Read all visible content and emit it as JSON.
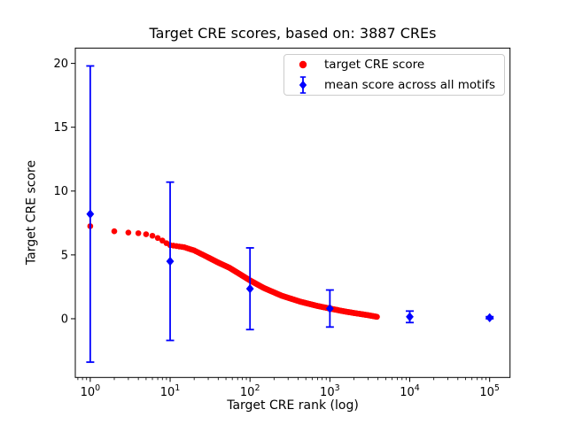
{
  "window": {
    "background": "#ffffff"
  },
  "chart_data": {
    "type": "scatter",
    "title": "Target CRE scores, based on: 3887 CREs",
    "xlabel": "Target CRE rank (log)",
    "ylabel": "Target CRE score",
    "xscale": "log",
    "xlim": [
      0.65,
      180000
    ],
    "ylim": [
      -4.6,
      21.2
    ],
    "xticks": [
      1,
      10,
      100,
      1000,
      10000,
      100000
    ],
    "xtick_labels": [
      {
        "base": "10",
        "exp": "0"
      },
      {
        "base": "10",
        "exp": "1"
      },
      {
        "base": "10",
        "exp": "2"
      },
      {
        "base": "10",
        "exp": "3"
      },
      {
        "base": "10",
        "exp": "4"
      },
      {
        "base": "10",
        "exp": "5"
      }
    ],
    "yticks": [
      0,
      5,
      10,
      15,
      20
    ],
    "grid": false,
    "legend_position": "upper right inside, bordered box",
    "series": [
      {
        "name": "target CRE score",
        "marker": "circle",
        "color": "#ff0000",
        "n_points": 3887,
        "points_note": "3887 dots at ranks 1..3887 forming a smooth descending band; anchor_points are [rank, score] values read from the plot, intermediate ranks lie on the curve through them",
        "anchor_points": [
          [
            1,
            7.25
          ],
          [
            2,
            6.85
          ],
          [
            3,
            6.75
          ],
          [
            4,
            6.7
          ],
          [
            5,
            6.62
          ],
          [
            6,
            6.5
          ],
          [
            7,
            6.32
          ],
          [
            8,
            6.12
          ],
          [
            9,
            5.92
          ],
          [
            10,
            5.76
          ],
          [
            15,
            5.6
          ],
          [
            20,
            5.35
          ],
          [
            30,
            4.8
          ],
          [
            40,
            4.4
          ],
          [
            55,
            4.0
          ],
          [
            70,
            3.6
          ],
          [
            100,
            3.0
          ],
          [
            150,
            2.4
          ],
          [
            250,
            1.8
          ],
          [
            430,
            1.33
          ],
          [
            700,
            1.0
          ],
          [
            1000,
            0.8
          ],
          [
            1500,
            0.58
          ],
          [
            2000,
            0.45
          ],
          [
            3000,
            0.28
          ],
          [
            3887,
            0.15
          ]
        ]
      },
      {
        "name": "mean score across all motifs",
        "marker": "diamond",
        "color": "#0000ff",
        "x": [
          1,
          10,
          100,
          1000,
          10000,
          100000
        ],
        "y": [
          8.2,
          4.5,
          2.35,
          0.8,
          0.15,
          0.08
        ],
        "yerr": [
          11.6,
          6.2,
          3.2,
          1.45,
          0.45,
          0.08
        ]
      }
    ]
  }
}
